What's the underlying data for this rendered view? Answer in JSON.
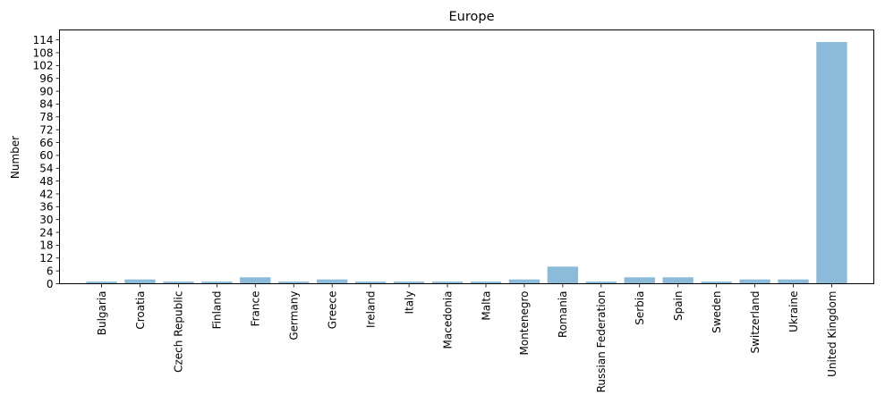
{
  "chart_data": {
    "type": "bar",
    "title": "Europe",
    "xlabel": "",
    "ylabel": "Number",
    "categories": [
      "Bulgaria",
      "Croatia",
      "Czech Republic",
      "Finland",
      "France",
      "Germany",
      "Greece",
      "Ireland",
      "Italy",
      "Macedonia",
      "Malta",
      "Montenegro",
      "Romania",
      "Russian Federation",
      "Serbia",
      "Spain",
      "Sweden",
      "Switzerland",
      "Ukraine",
      "United Kingdom"
    ],
    "values": [
      1,
      2,
      1,
      1,
      3,
      1,
      2,
      1,
      1,
      1,
      1,
      2,
      8,
      1,
      3,
      3,
      1,
      2,
      2,
      113
    ],
    "yticks": [
      0,
      6,
      12,
      18,
      24,
      30,
      36,
      42,
      48,
      54,
      60,
      66,
      72,
      78,
      84,
      90,
      96,
      102,
      108,
      114
    ],
    "ylim": [
      0,
      118.65
    ],
    "bar_color": "#8cbad9",
    "grid": false,
    "legend": "none"
  }
}
